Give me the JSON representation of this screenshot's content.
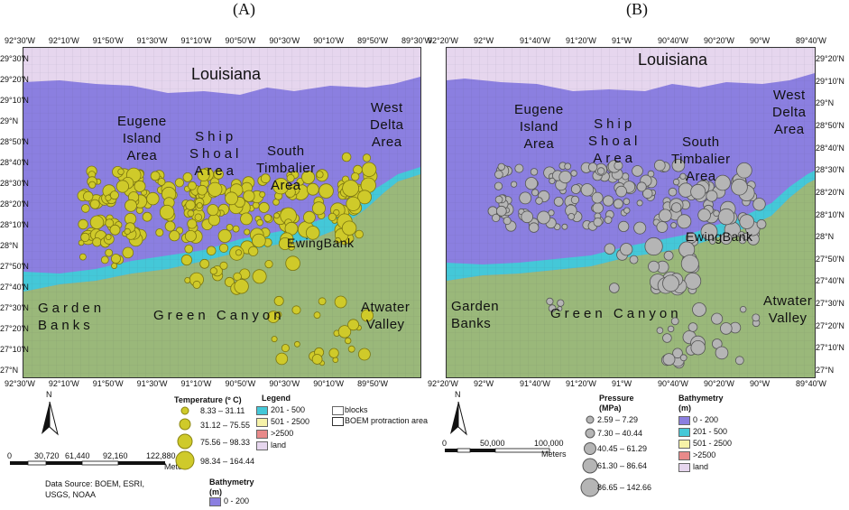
{
  "panels": [
    {
      "letter": "(A)",
      "top_ticks": [
        "92°30'W",
        "92°10'W",
        "91°50'W",
        "91°30'W",
        "91°10'W",
        "90°50'W",
        "90°30'W",
        "90°10'W",
        "89°50'W",
        "89°30'W"
      ],
      "bottom_ticks": [
        "92°30'W",
        "92°10'W",
        "91°50'W",
        "91°30'W",
        "91°10'W",
        "90°50'W",
        "90°30'W",
        "90°10'W",
        "89°50'W"
      ],
      "lat_ticks": [
        "29°30'N",
        "29°20'N",
        "29°10'N",
        "29°N",
        "28°50'N",
        "28°40'N",
        "28°30'N",
        "28°20'N",
        "28°10'N",
        "28°N",
        "27°50'N",
        "27°40'N",
        "27°30'N",
        "27°20'N",
        "27°10'N",
        "27°N"
      ],
      "labels": {
        "state": "Louisiana",
        "eugene": "Eugene\nIsland\nArea",
        "ship": "Ship\nShoal\nArea",
        "south": "South\nTimbalier\nArea",
        "west": "West\nDelta\nArea",
        "ewing": "EwingBank",
        "garden": "Garden\nBanks",
        "green": "Green Canyon",
        "atwater": "Atwater\nValley"
      }
    },
    {
      "letter": "(B)",
      "top_ticks": [
        "92°20'W",
        "92°W",
        "91°40'W",
        "91°20'W",
        "91°W",
        "90°40'W",
        "90°20'W",
        "90°W",
        "89°40'W"
      ],
      "bottom_ticks": [
        "92°20'W",
        "92°W",
        "91°40'W",
        "91°20'W",
        "91°W",
        "90°40'W",
        "90°20'W",
        "90°W",
        "89°40'W"
      ],
      "lat_ticks": [
        "29°20'N",
        "29°10'N",
        "29°N",
        "28°50'N",
        "28°40'N",
        "28°30'N",
        "28°20'N",
        "28°10'N",
        "28°N",
        "27°50'N",
        "27°40'N",
        "27°30'N",
        "27°20'N",
        "27°10'N",
        "27°N"
      ],
      "labels": {
        "state": "Louisiana",
        "eugene": "Eugene\nIsland\nArea",
        "ship": "Ship\nShoal\nArea",
        "south": "South\nTimbalier\nArea",
        "west": "West\nDelta\nArea",
        "ewing": "EwingBank",
        "garden": "Garden\nBanks",
        "green": "Green Canyon",
        "atwater": "Atwater\nValley"
      }
    }
  ],
  "legend_a": {
    "north": "N",
    "temp_title": "Temperature (º C)",
    "temp_classes": [
      "8.33 – 31.11",
      "31.12 – 75.55",
      "75.56 – 98.33",
      "98.34 – 164.44"
    ],
    "legend_title": "Legend",
    "bathy_items": [
      "201 - 500",
      "501 - 2500",
      ">2500",
      "land"
    ],
    "blocks": "blocks",
    "boem": "BOEM protraction area",
    "scale_ticks": [
      "0",
      "30,720",
      "61,440",
      "92,160",
      "122,880"
    ],
    "scale_unit": "Meters",
    "source": "Data Source: BOEM, ESRI,\nUSGS, NOAA",
    "bathy_title": "Bathymetry\n(m)",
    "bathy_first": "0 - 200"
  },
  "legend_b": {
    "north": "N",
    "pressure_title": "Pressure\n(MPa)",
    "pressure_classes": [
      "2.59 – 7.29",
      "7.30 – 40.44",
      "40.45 – 61.29",
      "61.30 – 86.64",
      "86.65 – 142.66"
    ],
    "bathy_title": "Bathymetry\n(m)",
    "bathy_items": [
      "0 - 200",
      "201 - 500",
      "501 - 2500",
      ">2500",
      "land"
    ],
    "scale_ticks": [
      "0",
      "50,000",
      "100,000"
    ],
    "scale_unit": "Meters"
  },
  "colors": {
    "shelf": "#8b7fe0",
    "slope": "#44c8d8",
    "deep": "#9ab87a",
    "land": "#e6d6ee",
    "temp_fill": "#cfca2a",
    "pressure_fill": "#b5b5b5",
    "red_swatch": "#e88a8a",
    "yellow_swatch": "#f6f2a8"
  }
}
